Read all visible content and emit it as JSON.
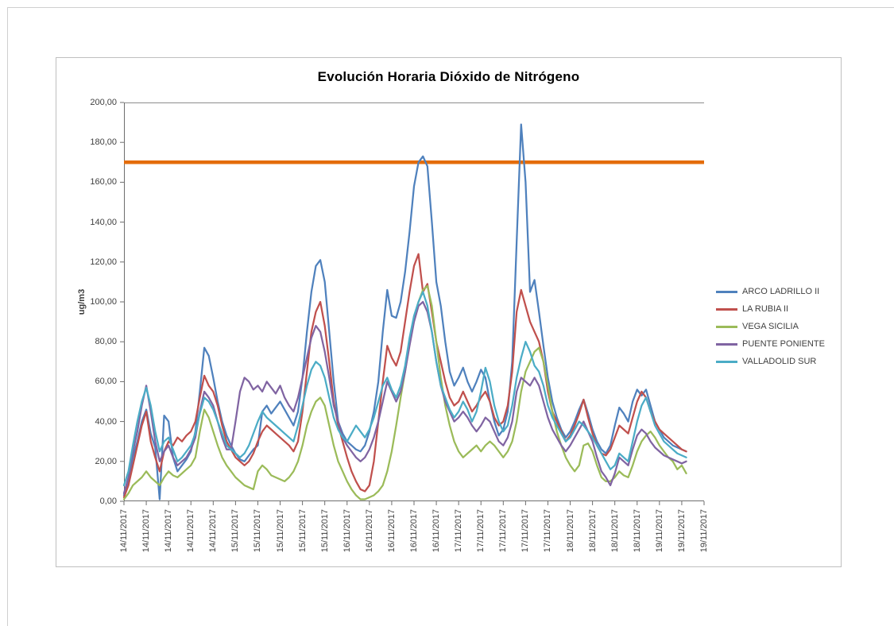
{
  "chart_data": {
    "type": "line",
    "title": "Evolución Horaria Dióxido de Nitrógeno",
    "xlabel": "",
    "ylabel": "ug/m3",
    "ylim": [
      0,
      200
    ],
    "y_tick_step": 20,
    "y_tick_labels": [
      "200,00",
      "180,00",
      "160,00",
      "140,00",
      "120,00",
      "100,00",
      "80,00",
      "60,00",
      "40,00",
      "20,00",
      "0,00"
    ],
    "x_tick_every_hours": 5,
    "x_tick_labels": [
      "14/11/2017",
      "14/11/2017",
      "14/11/2017",
      "14/11/2017",
      "14/11/2017",
      "15/11/2017",
      "15/11/2017",
      "15/11/2017",
      "15/11/2017",
      "15/11/2017",
      "16/11/2017",
      "16/11/2017",
      "16/11/2017",
      "16/11/2017",
      "16/11/2017",
      "17/11/2017",
      "17/11/2017",
      "17/11/2017",
      "17/11/2017",
      "17/11/2017",
      "18/11/2017",
      "18/11/2017",
      "18/11/2017",
      "18/11/2017",
      "19/11/2017",
      "19/11/2017",
      "19/11/2017"
    ],
    "grid": "top-border-only",
    "legend_position": "right",
    "threshold": {
      "name": "limit-line",
      "value": 170,
      "color": "#E46C0A"
    },
    "series": [
      {
        "name": "ARCO LADRILLO II",
        "color": "#4F81BD",
        "values": [
          3,
          10,
          22,
          30,
          40,
          46,
          34,
          27,
          1,
          43,
          40,
          22,
          15,
          18,
          21,
          25,
          35,
          55,
          77,
          73,
          62,
          50,
          40,
          33,
          28,
          24,
          21,
          20,
          23,
          26,
          28,
          45,
          48,
          44,
          47,
          50,
          46,
          42,
          38,
          45,
          62,
          85,
          105,
          118,
          121,
          110,
          85,
          60,
          40,
          34,
          30,
          28,
          26,
          25,
          28,
          35,
          45,
          60,
          85,
          106,
          93,
          92,
          100,
          115,
          135,
          158,
          170,
          173,
          168,
          140,
          110,
          98,
          80,
          65,
          58,
          62,
          67,
          60,
          55,
          60,
          66,
          62,
          50,
          40,
          33,
          36,
          45,
          70,
          130,
          189,
          160,
          105,
          111,
          95,
          78,
          62,
          50,
          42,
          36,
          32,
          35,
          40,
          46,
          51,
          44,
          36,
          30,
          26,
          24,
          28,
          38,
          47,
          44,
          40,
          50,
          56,
          53,
          56,
          48,
          40,
          36,
          32,
          30,
          28,
          27,
          26,
          25
        ]
      },
      {
        "name": "LA RUBIA II",
        "color": "#C0504D",
        "values": [
          2,
          8,
          18,
          28,
          38,
          45,
          30,
          22,
          15,
          25,
          30,
          28,
          32,
          30,
          33,
          35,
          40,
          52,
          63,
          58,
          55,
          48,
          38,
          30,
          26,
          22,
          20,
          18,
          20,
          24,
          30,
          35,
          38,
          36,
          34,
          32,
          30,
          28,
          25,
          30,
          45,
          65,
          85,
          95,
          100,
          88,
          70,
          50,
          38,
          30,
          22,
          15,
          10,
          6,
          5,
          8,
          20,
          40,
          60,
          78,
          72,
          68,
          75,
          90,
          105,
          118,
          124,
          105,
          109,
          95,
          80,
          70,
          60,
          52,
          48,
          50,
          55,
          50,
          45,
          48,
          52,
          55,
          50,
          42,
          38,
          40,
          48,
          65,
          95,
          106,
          98,
          90,
          85,
          80,
          70,
          55,
          45,
          40,
          35,
          30,
          33,
          38,
          44,
          51,
          42,
          34,
          28,
          24,
          23,
          26,
          32,
          38,
          36,
          34,
          42,
          50,
          55,
          52,
          45,
          40,
          36,
          34,
          32,
          30,
          28,
          26,
          25
        ]
      },
      {
        "name": "VEGA SICILIA",
        "color": "#9BBB59",
        "values": [
          1,
          4,
          8,
          10,
          12,
          15,
          12,
          10,
          8,
          12,
          15,
          13,
          12,
          14,
          16,
          18,
          22,
          35,
          46,
          42,
          35,
          28,
          22,
          18,
          15,
          12,
          10,
          8,
          7,
          6,
          15,
          18,
          16,
          13,
          12,
          11,
          10,
          12,
          15,
          20,
          28,
          38,
          45,
          50,
          52,
          48,
          38,
          28,
          20,
          15,
          10,
          6,
          3,
          1,
          1,
          2,
          3,
          5,
          8,
          15,
          25,
          38,
          52,
          65,
          80,
          92,
          100,
          106,
          108,
          98,
          80,
          62,
          48,
          38,
          30,
          25,
          22,
          24,
          26,
          28,
          25,
          28,
          30,
          28,
          25,
          22,
          25,
          30,
          40,
          55,
          65,
          70,
          75,
          77,
          70,
          58,
          45,
          35,
          28,
          22,
          18,
          15,
          18,
          28,
          29,
          25,
          18,
          12,
          10,
          10,
          12,
          15,
          13,
          12,
          18,
          25,
          30,
          33,
          35,
          32,
          28,
          25,
          22,
          20,
          16,
          18,
          14
        ]
      },
      {
        "name": "PUENTE PONIENTE",
        "color": "#8064A2",
        "values": [
          4,
          12,
          25,
          35,
          48,
          58,
          45,
          30,
          20,
          25,
          28,
          22,
          18,
          20,
          22,
          26,
          32,
          45,
          55,
          52,
          48,
          40,
          32,
          26,
          26,
          40,
          55,
          62,
          60,
          56,
          58,
          55,
          60,
          57,
          54,
          58,
          52,
          48,
          45,
          52,
          62,
          72,
          82,
          88,
          85,
          75,
          62,
          48,
          40,
          32,
          28,
          25,
          22,
          20,
          22,
          26,
          32,
          40,
          50,
          60,
          55,
          50,
          55,
          65,
          78,
          90,
          98,
          100,
          95,
          85,
          70,
          58,
          50,
          45,
          40,
          42,
          45,
          42,
          38,
          35,
          38,
          42,
          40,
          35,
          30,
          28,
          32,
          40,
          55,
          62,
          60,
          58,
          62,
          58,
          50,
          42,
          36,
          32,
          28,
          25,
          28,
          32,
          36,
          40,
          35,
          30,
          22,
          15,
          12,
          8,
          14,
          22,
          20,
          18,
          26,
          33,
          36,
          34,
          30,
          27,
          25,
          23,
          22,
          21,
          20,
          19,
          20
        ]
      },
      {
        "name": "VALLADOLID SUR",
        "color": "#4BACC6",
        "values": [
          8,
          15,
          28,
          40,
          50,
          57,
          48,
          35,
          25,
          30,
          32,
          26,
          20,
          22,
          25,
          28,
          34,
          44,
          52,
          50,
          46,
          40,
          34,
          28,
          26,
          24,
          22,
          24,
          28,
          34,
          40,
          45,
          42,
          40,
          38,
          36,
          34,
          32,
          30,
          38,
          48,
          58,
          66,
          70,
          68,
          62,
          52,
          42,
          36,
          32,
          30,
          34,
          38,
          35,
          32,
          36,
          42,
          50,
          58,
          62,
          56,
          52,
          58,
          68,
          82,
          93,
          100,
          105,
          98,
          85,
          70,
          58,
          52,
          46,
          42,
          45,
          50,
          46,
          40,
          45,
          55,
          67,
          60,
          48,
          40,
          35,
          38,
          48,
          62,
          72,
          80,
          75,
          68,
          65,
          58,
          48,
          42,
          38,
          34,
          30,
          32,
          36,
          40,
          38,
          35,
          32,
          28,
          24,
          20,
          16,
          18,
          24,
          22,
          20,
          30,
          40,
          48,
          52,
          45,
          38,
          34,
          30,
          28,
          26,
          24,
          23,
          22
        ]
      }
    ]
  }
}
